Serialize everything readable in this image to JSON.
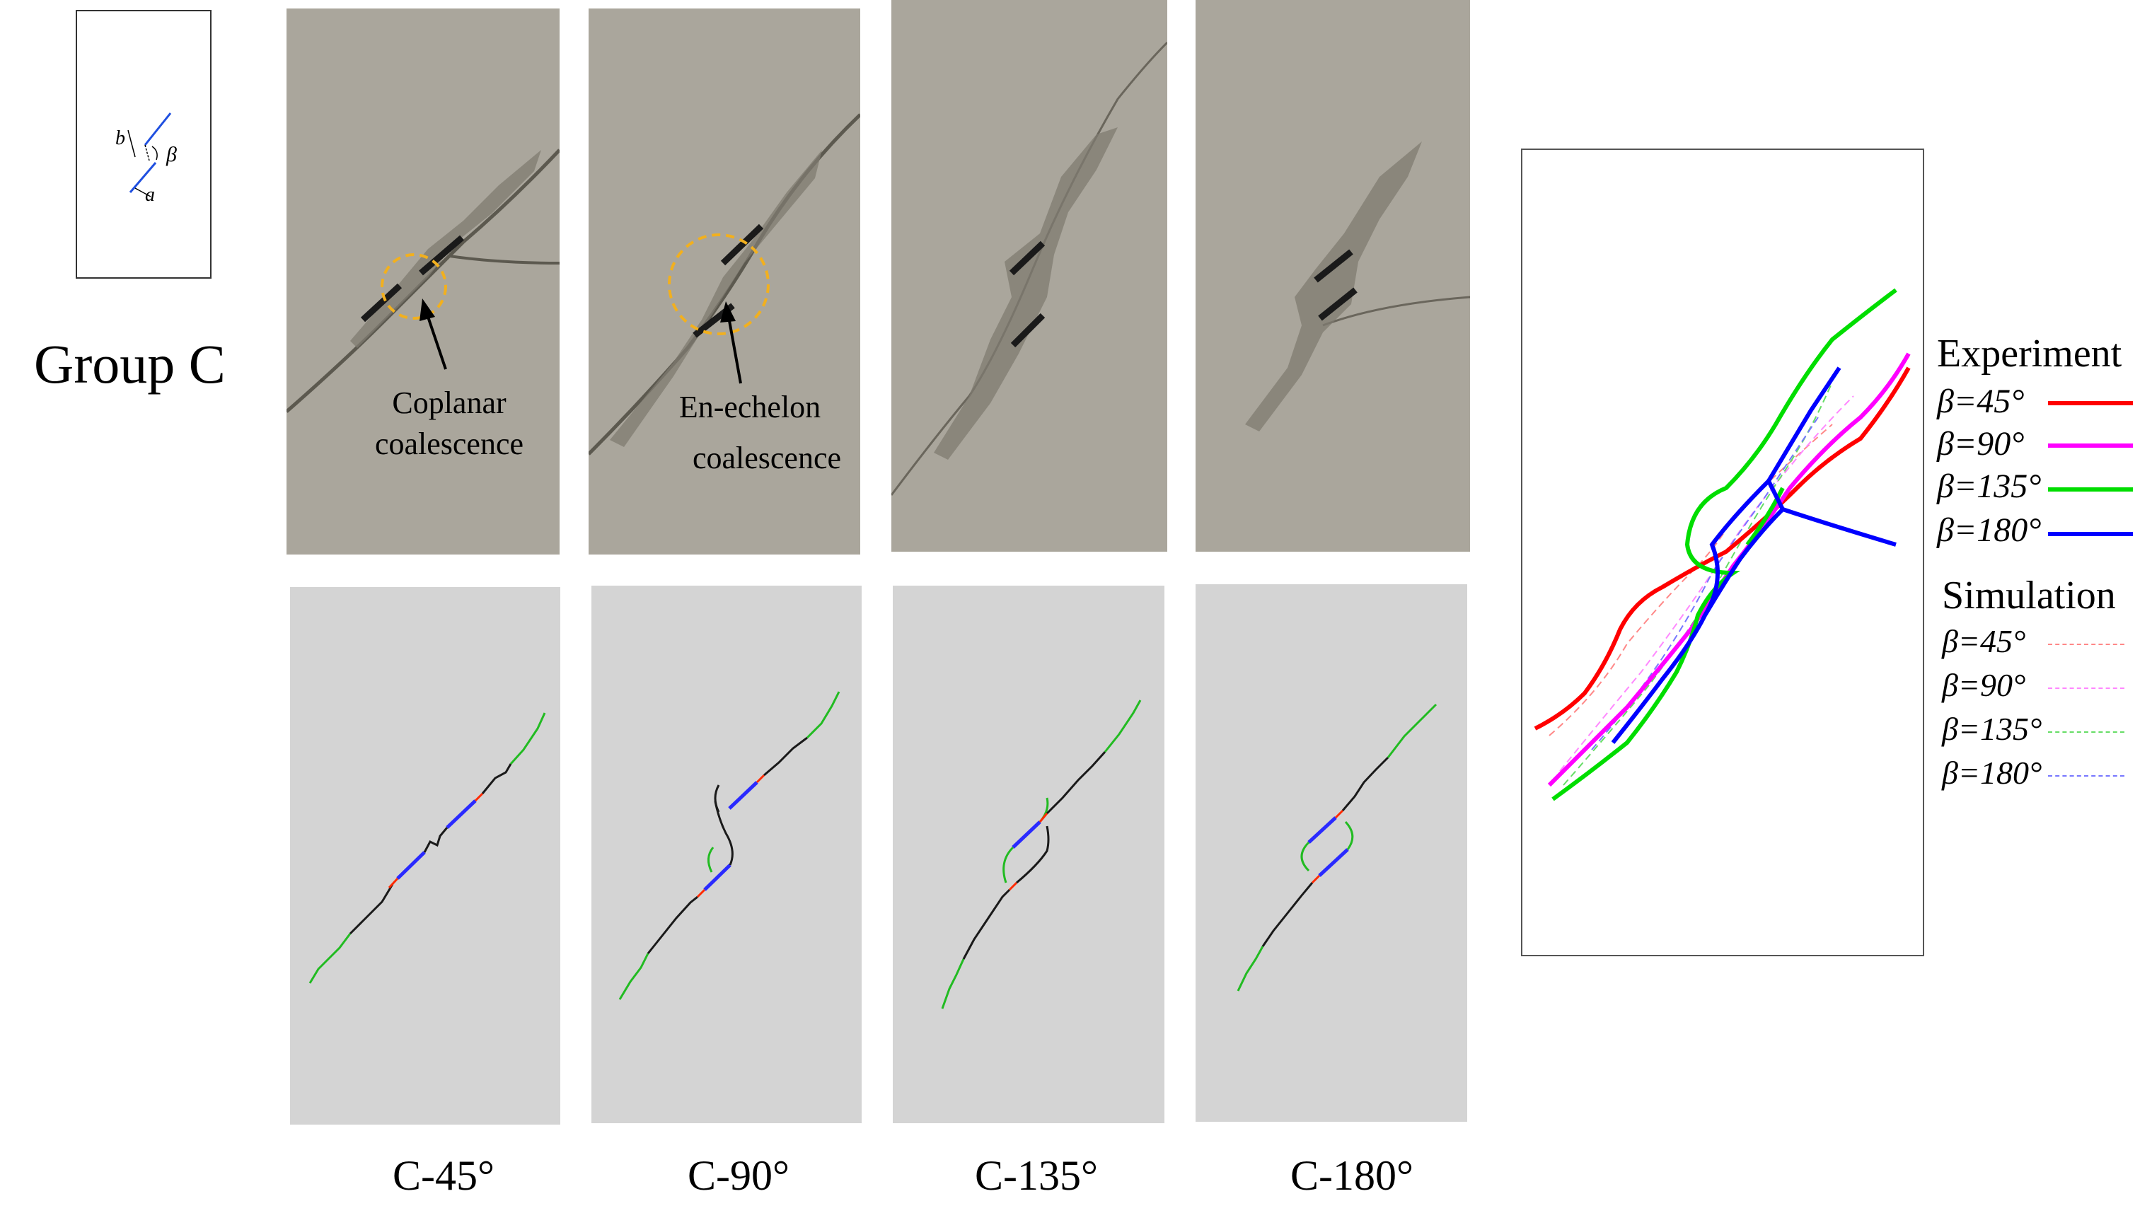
{
  "schematic": {
    "b": "b",
    "beta": "β",
    "a": "a"
  },
  "group_label": "Group C",
  "annotations": {
    "coplanar_line1": "Coplanar",
    "coplanar_line2": "coalescence",
    "enechelon_line1": "En-echelon",
    "enechelon_line2": "coalescence"
  },
  "case_labels": [
    "C-45°",
    "C-90°",
    "C-135°",
    "C-180°"
  ],
  "legend": {
    "experiment_title": "Experiment",
    "simulation_title": "Simulation",
    "entries": [
      {
        "label": "β=45°",
        "color": "#ff0000"
      },
      {
        "label": "β=90°",
        "color": "#ff00ff"
      },
      {
        "label": "β=135°",
        "color": "#00dd00"
      },
      {
        "label": "β=180°",
        "color": "#0000ff"
      }
    ]
  },
  "colors": {
    "photo_bg": "#aaa69c",
    "sim_bg": "#d4d4d4",
    "flaw": "#1a1a1a",
    "annotation_circle": "#f2b01e",
    "sim_tensile": "#1a1a1a",
    "sim_shear": "#ff2a00",
    "sim_flaw": "#2a2aff",
    "sim_tip": "#22bb22"
  }
}
